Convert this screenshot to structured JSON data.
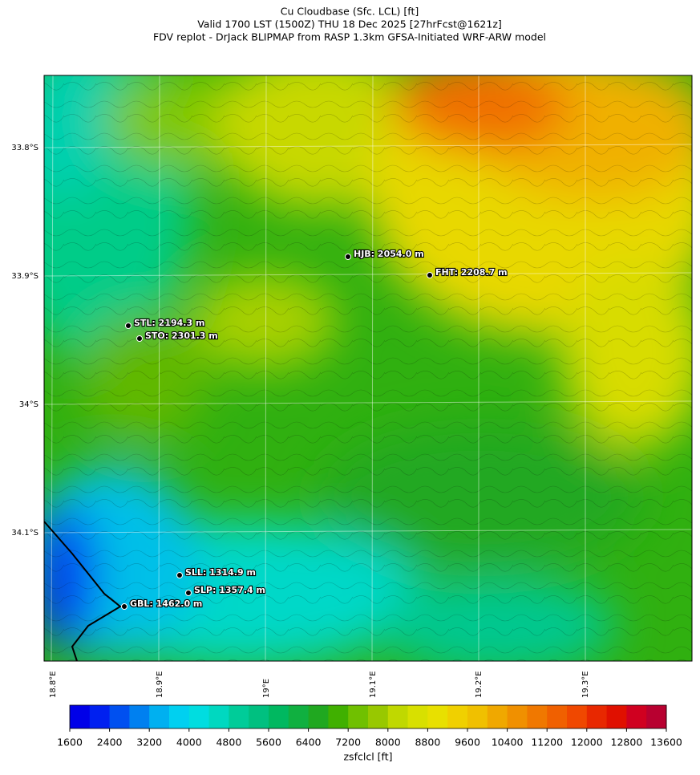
{
  "title": [
    "Cu Cloudbase (Sfc. LCL) [ft]",
    "Valid 1700 LST (1500Z) THU 18 Dec 2025 [27hrFcst@1621z]",
    "FDV replot - DrJack BLIPMAP from RASP 1.3km GFSA-Initiated WRF-ARW model"
  ],
  "lat_labels": [
    "33.8°S",
    "33.9°S",
    "34°S",
    "34.1°S"
  ],
  "lon_labels": [
    "18.8°E",
    "18.9°E",
    "19°E",
    "19.1°E",
    "19.2°E",
    "19.3°E"
  ],
  "stations": [
    "HJB: 2054.0 m",
    "FHT: 2208.7 m",
    "STL: 2194.3 m",
    "STO: 2301.3 m",
    "SLL: 1314.9 m",
    "SLP: 1357.4 m",
    "GBL: 1462.0 m"
  ],
  "colorbar": {
    "label": "zsfclcl [ft]",
    "lim": [
      1600,
      13600
    ],
    "ticks": [
      1600,
      2400,
      3200,
      4000,
      4800,
      5600,
      6400,
      7200,
      8000,
      8800,
      9600,
      10400,
      11200,
      12000,
      12800,
      13600
    ],
    "colors": [
      "#0000e8",
      "#0020f0",
      "#0050f0",
      "#0080f0",
      "#00b0f0",
      "#00d0f0",
      "#00dde0",
      "#00d8c0",
      "#00cc99",
      "#00c080",
      "#00b860",
      "#10b040",
      "#20a820",
      "#40b000",
      "#70c000",
      "#98c800",
      "#c0d800",
      "#d8e000",
      "#e8e000",
      "#f0d000",
      "#f0c000",
      "#f0a800",
      "#f09000",
      "#f07800",
      "#f06000",
      "#f04800",
      "#e82800",
      "#e01000",
      "#d00020",
      "#b80030"
    ]
  }
}
